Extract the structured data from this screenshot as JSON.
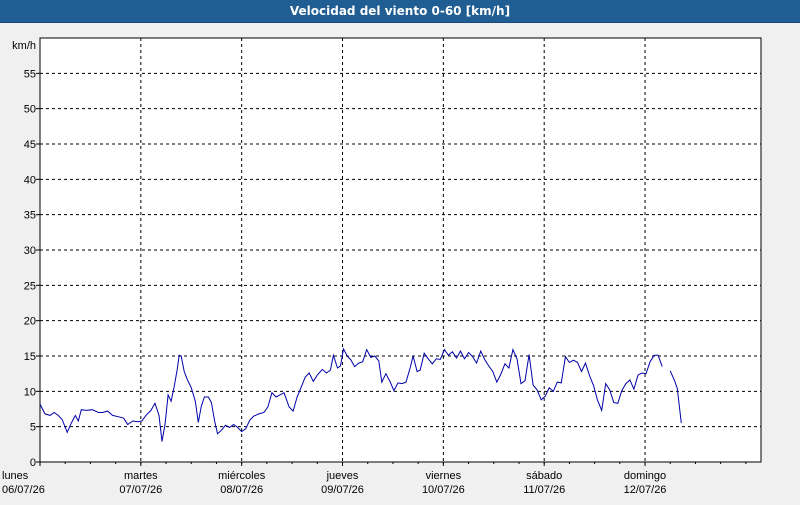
{
  "window": {
    "title": "Velocidad del viento 0-60 [km/h]"
  },
  "chart_data": {
    "type": "line",
    "title": "Velocidad del viento 0-60 [km/h]",
    "ylabel": "km/h",
    "ylim": [
      0,
      60
    ],
    "yticks": [
      0,
      5,
      10,
      15,
      20,
      25,
      30,
      35,
      40,
      45,
      50,
      55
    ],
    "xlim_days": [
      0,
      7.15
    ],
    "grid": true,
    "x_ticks": [
      {
        "day": "lunes",
        "date": "06/07/26"
      },
      {
        "day": "martes",
        "date": "07/07/26"
      },
      {
        "day": "miércoles",
        "date": "08/07/26"
      },
      {
        "day": "jueves",
        "date": "09/07/26"
      },
      {
        "day": "viernes",
        "date": "10/07/26"
      },
      {
        "day": "sábado",
        "date": "11/07/26"
      },
      {
        "day": "domingo",
        "date": "12/07/26"
      }
    ],
    "series": [
      {
        "color": "#0000aa",
        "points": [
          [
            0.0,
            8.2
          ],
          [
            0.05,
            6.8
          ],
          [
            0.1,
            6.6
          ],
          [
            0.14,
            7.0
          ],
          [
            0.18,
            6.6
          ],
          [
            0.22,
            6.0
          ],
          [
            0.27,
            4.2
          ],
          [
            0.31,
            5.5
          ],
          [
            0.35,
            6.6
          ],
          [
            0.38,
            5.8
          ],
          [
            0.41,
            7.4
          ],
          [
            0.46,
            7.3
          ],
          [
            0.52,
            7.4
          ],
          [
            0.58,
            7.0
          ],
          [
            0.62,
            7.0
          ],
          [
            0.67,
            7.2
          ],
          [
            0.72,
            6.6
          ],
          [
            0.78,
            6.4
          ],
          [
            0.83,
            6.2
          ],
          [
            0.87,
            5.3
          ],
          [
            0.92,
            5.8
          ],
          [
            0.97,
            5.7
          ],
          [
            1.01,
            5.8
          ],
          [
            1.05,
            6.6
          ],
          [
            1.1,
            7.3
          ],
          [
            1.14,
            8.3
          ],
          [
            1.18,
            6.6
          ],
          [
            1.21,
            2.9
          ],
          [
            1.24,
            5.3
          ],
          [
            1.27,
            9.5
          ],
          [
            1.3,
            8.6
          ],
          [
            1.33,
            10.6
          ],
          [
            1.36,
            13.0
          ],
          [
            1.38,
            15.1
          ],
          [
            1.4,
            15.0
          ],
          [
            1.43,
            12.8
          ],
          [
            1.46,
            11.7
          ],
          [
            1.5,
            10.5
          ],
          [
            1.54,
            8.6
          ],
          [
            1.57,
            5.6
          ],
          [
            1.6,
            7.9
          ],
          [
            1.63,
            9.2
          ],
          [
            1.67,
            9.2
          ],
          [
            1.7,
            8.4
          ],
          [
            1.73,
            5.9
          ],
          [
            1.76,
            4.0
          ],
          [
            1.8,
            4.5
          ],
          [
            1.84,
            5.2
          ],
          [
            1.88,
            4.9
          ],
          [
            1.92,
            5.3
          ],
          [
            1.96,
            4.9
          ],
          [
            2.0,
            4.3
          ],
          [
            2.04,
            4.7
          ],
          [
            2.08,
            5.9
          ],
          [
            2.12,
            6.5
          ],
          [
            2.17,
            6.8
          ],
          [
            2.22,
            7.0
          ],
          [
            2.26,
            7.8
          ],
          [
            2.3,
            9.8
          ],
          [
            2.34,
            9.2
          ],
          [
            2.38,
            9.5
          ],
          [
            2.42,
            9.8
          ],
          [
            2.47,
            7.8
          ],
          [
            2.51,
            7.2
          ],
          [
            2.55,
            9.2
          ],
          [
            2.59,
            10.6
          ],
          [
            2.63,
            12.0
          ],
          [
            2.67,
            12.6
          ],
          [
            2.71,
            11.4
          ],
          [
            2.75,
            12.3
          ],
          [
            2.8,
            13.1
          ],
          [
            2.84,
            12.6
          ],
          [
            2.88,
            13.0
          ],
          [
            2.91,
            15.1
          ],
          [
            2.95,
            13.3
          ],
          [
            2.98,
            13.6
          ],
          [
            3.01,
            16.0
          ],
          [
            3.05,
            14.9
          ],
          [
            3.08,
            14.5
          ],
          [
            3.12,
            13.5
          ],
          [
            3.16,
            14.0
          ],
          [
            3.2,
            14.2
          ],
          [
            3.24,
            15.9
          ],
          [
            3.28,
            14.8
          ],
          [
            3.32,
            15.0
          ],
          [
            3.36,
            14.3
          ],
          [
            3.39,
            11.3
          ],
          [
            3.43,
            12.5
          ],
          [
            3.47,
            11.4
          ],
          [
            3.51,
            10.1
          ],
          [
            3.55,
            11.2
          ],
          [
            3.59,
            11.1
          ],
          [
            3.63,
            11.3
          ],
          [
            3.67,
            13.3
          ],
          [
            3.7,
            15.0
          ],
          [
            3.74,
            12.8
          ],
          [
            3.77,
            13.0
          ],
          [
            3.81,
            15.4
          ],
          [
            3.85,
            14.6
          ],
          [
            3.89,
            13.9
          ],
          [
            3.93,
            14.6
          ],
          [
            3.97,
            14.5
          ],
          [
            4.01,
            15.9
          ],
          [
            4.05,
            15.1
          ],
          [
            4.09,
            15.6
          ],
          [
            4.13,
            14.7
          ],
          [
            4.17,
            15.7
          ],
          [
            4.21,
            14.6
          ],
          [
            4.25,
            15.5
          ],
          [
            4.29,
            14.9
          ],
          [
            4.33,
            14.0
          ],
          [
            4.37,
            15.7
          ],
          [
            4.41,
            14.5
          ],
          [
            4.45,
            13.6
          ],
          [
            4.49,
            12.8
          ],
          [
            4.53,
            11.3
          ],
          [
            4.57,
            12.4
          ],
          [
            4.61,
            13.9
          ],
          [
            4.65,
            13.3
          ],
          [
            4.69,
            15.9
          ],
          [
            4.73,
            14.6
          ],
          [
            4.77,
            11.1
          ],
          [
            4.81,
            11.5
          ],
          [
            4.85,
            15.2
          ],
          [
            4.89,
            10.9
          ],
          [
            4.93,
            10.2
          ],
          [
            4.97,
            8.8
          ],
          [
            5.01,
            9.3
          ],
          [
            5.05,
            10.5
          ],
          [
            5.09,
            10.0
          ],
          [
            5.13,
            11.3
          ],
          [
            5.17,
            11.2
          ],
          [
            5.21,
            14.9
          ],
          [
            5.25,
            14.1
          ],
          [
            5.29,
            14.4
          ],
          [
            5.33,
            14.1
          ],
          [
            5.37,
            12.8
          ],
          [
            5.41,
            14.0
          ],
          [
            5.45,
            12.2
          ],
          [
            5.49,
            10.8
          ],
          [
            5.53,
            8.7
          ],
          [
            5.57,
            7.3
          ],
          [
            5.61,
            11.1
          ],
          [
            5.65,
            10.2
          ],
          [
            5.69,
            8.4
          ],
          [
            5.73,
            8.3
          ],
          [
            5.77,
            10.1
          ],
          [
            5.81,
            11.1
          ],
          [
            5.85,
            11.6
          ],
          [
            5.89,
            10.3
          ],
          [
            5.93,
            12.3
          ],
          [
            5.97,
            12.6
          ],
          [
            6.01,
            12.5
          ],
          [
            6.05,
            14.2
          ],
          [
            6.09,
            15.1
          ],
          [
            6.13,
            15.1
          ],
          [
            6.17,
            13.5
          ],
          [
            6.21,
            null
          ],
          [
            6.25,
            12.9
          ],
          [
            6.29,
            11.6
          ],
          [
            6.32,
            10.4
          ],
          [
            6.36,
            5.5
          ]
        ]
      }
    ]
  }
}
